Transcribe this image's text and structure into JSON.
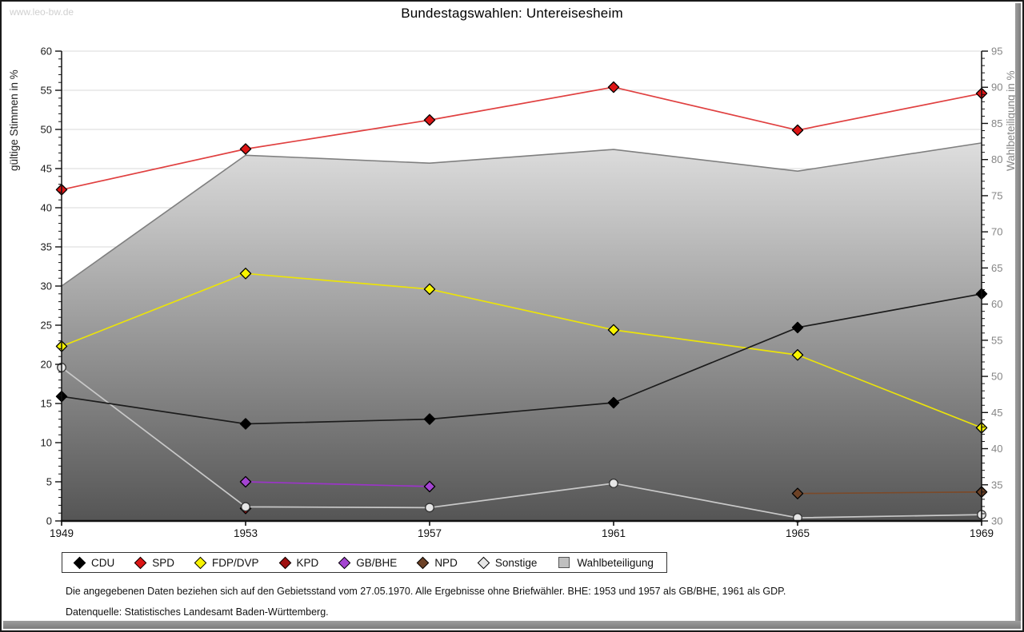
{
  "watermark": "www.leo-bw.de",
  "title": "Bundestagswahlen: Untereisesheim",
  "footer": {
    "line1": "Die angegebenen Daten beziehen sich auf den Gebietsstand vom 27.05.1970. Alle Ergebnisse ohne Briefwähler. BHE: 1953 und 1957 als GB/BHE, 1961 als GDP.",
    "line2": "Datenquelle: Statistisches Landesamt Baden-Württemberg."
  },
  "chart_data": {
    "type": "line",
    "title": "Bundestagswahlen: Untereisesheim",
    "x": [
      1949,
      1953,
      1957,
      1961,
      1965,
      1969
    ],
    "left_axis": {
      "label": "gültige Stimmen in %",
      "min": 0,
      "max": 60,
      "tick_step": 5,
      "minor_step": 1,
      "ticks": [
        0,
        5,
        10,
        15,
        20,
        25,
        30,
        35,
        40,
        45,
        50,
        55,
        60
      ]
    },
    "right_axis": {
      "label": "Wahlbeteiligung in %",
      "min": 30,
      "max": 95,
      "tick_step": 5,
      "minor_step": 1,
      "ticks": [
        30,
        35,
        40,
        45,
        50,
        55,
        60,
        65,
        70,
        75,
        80,
        85,
        90,
        95
      ]
    },
    "grid": true,
    "legend_position": "bottom",
    "series": [
      {
        "name": "CDU",
        "type": "line",
        "axis": "left",
        "color": "#1c1c1c",
        "marker_color": "#000000",
        "marker": "diamond",
        "values": [
          15.9,
          12.4,
          13.0,
          15.1,
          24.7,
          29.0
        ]
      },
      {
        "name": "SPD",
        "type": "line",
        "axis": "left",
        "color": "#e04040",
        "marker_color": "#dd1515",
        "marker": "diamond",
        "values": [
          42.3,
          47.5,
          51.2,
          55.4,
          49.9,
          54.6
        ]
      },
      {
        "name": "FDP/DVP",
        "type": "line",
        "axis": "left",
        "color": "#ebe30a",
        "marker_color": "#f8f400",
        "marker": "diamond",
        "values": [
          22.3,
          31.6,
          29.6,
          24.4,
          21.2,
          11.9
        ]
      },
      {
        "name": "KPD",
        "type": "line",
        "axis": "left",
        "color": "#a01010",
        "marker_color": "#a01010",
        "marker": "diamond",
        "values": [
          null,
          1.6,
          null,
          null,
          null,
          null
        ]
      },
      {
        "name": "GB/BHE",
        "type": "line",
        "axis": "left",
        "color": "#9b35c8",
        "marker_color": "#a444d2",
        "marker": "diamond",
        "values": [
          null,
          5.0,
          4.4,
          null,
          null,
          null
        ]
      },
      {
        "name": "NPD",
        "type": "line",
        "axis": "left",
        "color": "#7b4a2a",
        "marker_color": "#6d4226",
        "marker": "diamond",
        "values": [
          null,
          null,
          null,
          null,
          3.5,
          3.7
        ]
      },
      {
        "name": "Sonstige",
        "type": "line",
        "axis": "left",
        "color": "#c9c9c9",
        "marker_color": "#e6e6e6",
        "marker": "circle",
        "values": [
          19.6,
          1.8,
          1.7,
          4.8,
          0.4,
          0.8
        ]
      },
      {
        "name": "Wahlbeteiligung",
        "type": "area",
        "axis": "right",
        "color": "#7f7f7f",
        "marker_color": "#bfbfbf",
        "marker": "square",
        "values": [
          62.5,
          80.6,
          79.5,
          81.4,
          78.4,
          82.3
        ]
      }
    ],
    "area_gradient": {
      "top": "#ffffff",
      "bottom": "#555555"
    },
    "grid_color": "#d9d9d9",
    "axis_color": "#111111",
    "right_label_color": "#858585"
  }
}
